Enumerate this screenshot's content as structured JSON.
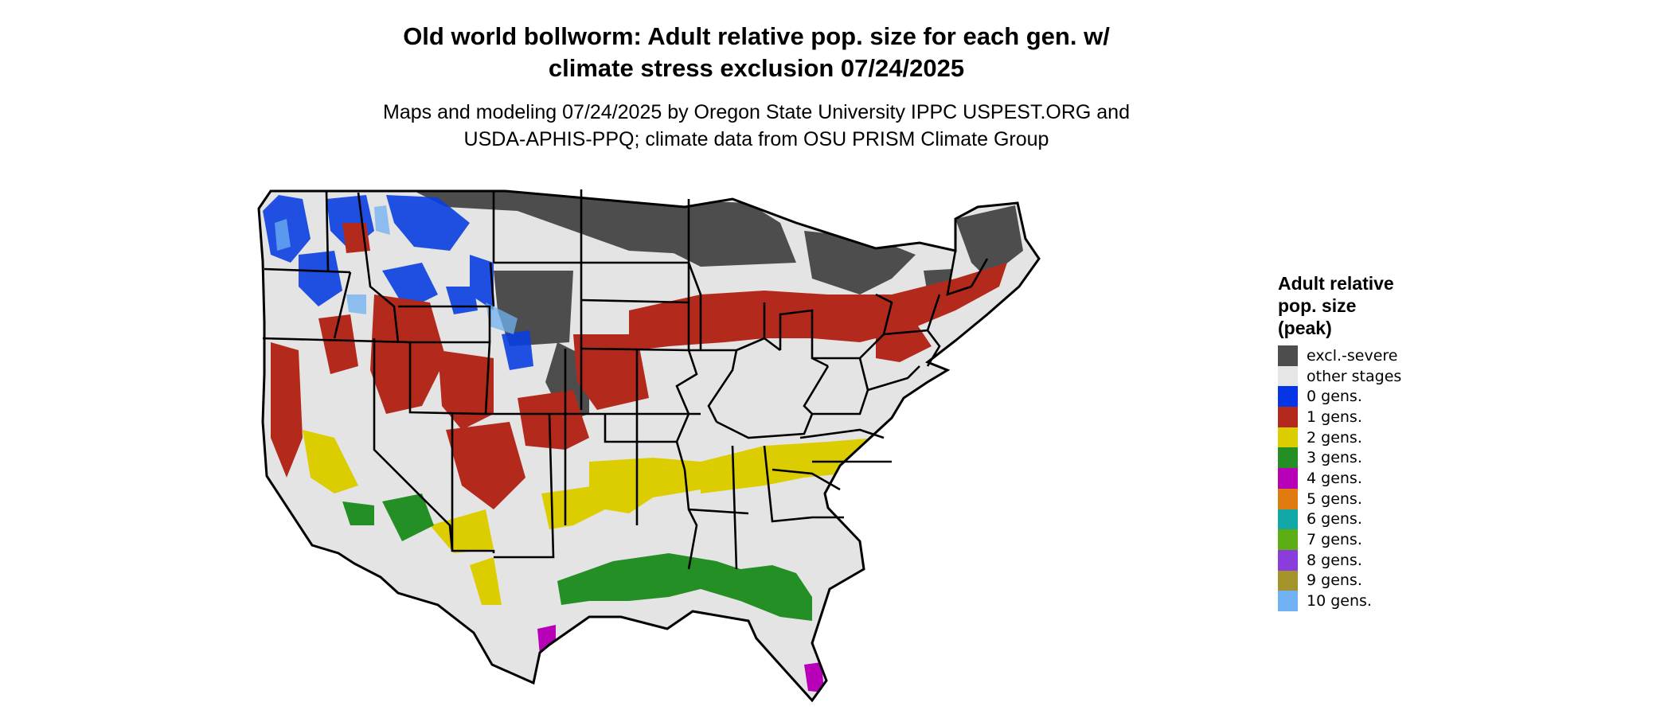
{
  "title_line1": "Old world bollworm: Adult relative pop. size for each gen. w/",
  "title_line2": "climate stress exclusion 07/24/2025",
  "subtitle_line1": "Maps and modeling 07/24/2025 by Oregon State University IPPC USPEST.ORG and",
  "subtitle_line2": "USDA-APHIS-PPQ; climate data from OSU PRISM Climate Group",
  "legend": {
    "title_line1": "Adult relative",
    "title_line2": "pop. size",
    "title_line3": "(peak)",
    "items": [
      {
        "label": "excl.-severe",
        "color": "#4d4d4d"
      },
      {
        "label": "other stages",
        "color": "#e6e6e6"
      },
      {
        "label": "0 gens.",
        "color": "#0535e6"
      },
      {
        "label": "1 gens.",
        "color": "#b32a1c"
      },
      {
        "label": "2 gens.",
        "color": "#dccd00"
      },
      {
        "label": "3 gens.",
        "color": "#248f24"
      },
      {
        "label": "4 gens.",
        "color": "#b800b8"
      },
      {
        "label": "5 gens.",
        "color": "#e07b10"
      },
      {
        "label": "6 gens.",
        "color": "#13a8a8"
      },
      {
        "label": "7 gens.",
        "color": "#5cae15"
      },
      {
        "label": "8 gens.",
        "color": "#8a3ddb"
      },
      {
        "label": "9 gens.",
        "color": "#a4922b"
      },
      {
        "label": "10 gens.",
        "color": "#6fb1f2"
      }
    ]
  }
}
